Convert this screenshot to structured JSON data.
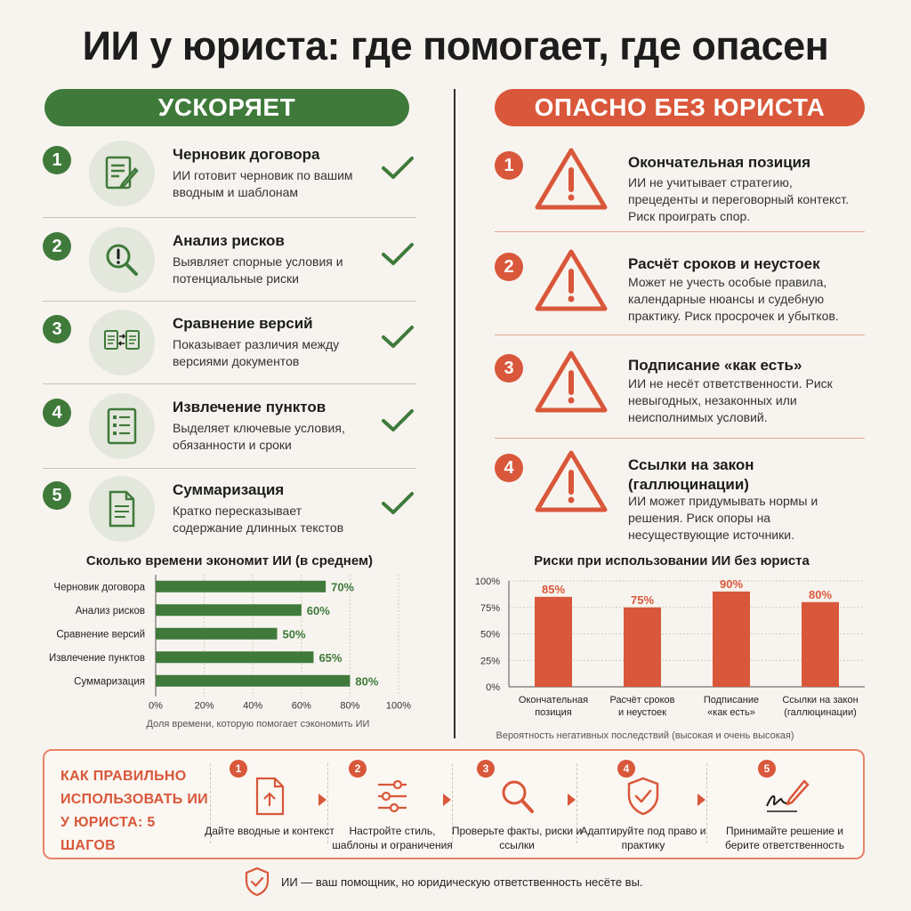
{
  "title": "ИИ у юриста: где помогает, где опасен",
  "left": {
    "header": "УСКОРЯЕТ",
    "items": [
      {
        "num": "1",
        "title": "Черновик договора",
        "desc": "ИИ готовит черновик по вашим вводным и шаблонам",
        "icon": "document-pen-icon"
      },
      {
        "num": "2",
        "title": "Анализ рисков",
        "desc": "Выявляет спорные условия и потенциальные риски",
        "icon": "magnifier-exclamation-icon"
      },
      {
        "num": "3",
        "title": "Сравнение версий",
        "desc": "Показывает различия между версиями документов",
        "icon": "compare-documents-icon"
      },
      {
        "num": "4",
        "title": "Извлечение пунктов",
        "desc": "Выделяет ключевые условия, обязанности и сроки",
        "icon": "checklist-icon"
      },
      {
        "num": "5",
        "title": "Суммаризация",
        "desc": "Кратко пересказывает содержание длинных текстов",
        "icon": "document-lines-icon"
      }
    ]
  },
  "right": {
    "header": "ОПАСНО БЕЗ ЮРИСТА",
    "items": [
      {
        "num": "1",
        "title": "Окончательная позиция",
        "desc": "ИИ не учитывает стратегию, прецеденты и переговорный контекст. Риск проиграть спор.",
        "icon": "warning-icon"
      },
      {
        "num": "2",
        "title": "Расчёт сроков и неустоек",
        "desc": "Может не учесть особые правила, календарные нюансы и судебную практику. Риск просрочек и убытков.",
        "icon": "warning-icon"
      },
      {
        "num": "3",
        "title": "Подписание «как есть»",
        "desc": "ИИ не несёт ответственности. Риск невыгодных, незаконных или неисполнимых условий.",
        "icon": "warning-icon"
      },
      {
        "num": "4",
        "title": "Ссылки на закон (галлюцинации)",
        "desc": "ИИ может придумывать нормы и решения. Риск опоры на несуществующие источники.",
        "icon": "warning-icon"
      }
    ]
  },
  "chart_data": [
    {
      "type": "bar",
      "orientation": "horizontal",
      "title": "Сколько времени экономит ИИ (в среднем)",
      "categories": [
        "Черновик договора",
        "Анализ рисков",
        "Сравнение версий",
        "Извлечение пунктов",
        "Суммаризация"
      ],
      "values": [
        70,
        60,
        50,
        65,
        80
      ],
      "value_labels": [
        "70%",
        "60%",
        "50%",
        "65%",
        "80%"
      ],
      "xlim": [
        0,
        100
      ],
      "x_ticks": [
        "0%",
        "20%",
        "40%",
        "60%",
        "80%",
        "100%"
      ],
      "xlabel": "Доля времени, которую помогает сэкономить ИИ",
      "grid": true,
      "color": "#3f7a3a"
    },
    {
      "type": "bar",
      "orientation": "vertical",
      "title": "Риски при использовании ИИ без юриста",
      "categories": [
        "Окончательная позиция",
        "Расчёт сроков и неустоек",
        "Подписание «как есть»",
        "Ссылки на закон (галлюцинации)"
      ],
      "category_lines": [
        [
          "Окончательная",
          "позиция"
        ],
        [
          "Расчёт сроков",
          "и неустоек"
        ],
        [
          "Подписание",
          "«как есть»"
        ],
        [
          "Ссылки на закон",
          "(галлюцинации)"
        ]
      ],
      "values": [
        85,
        75,
        90,
        80
      ],
      "value_labels": [
        "85%",
        "75%",
        "90%",
        "80%"
      ],
      "ylim": [
        0,
        100
      ],
      "y_ticks": [
        "0%",
        "25%",
        "50%",
        "75%",
        "100%"
      ],
      "xlabel": "Вероятность негативных последствий (высокая и очень высокая)",
      "grid": true,
      "color": "#d9573a"
    }
  ],
  "steps": {
    "title": "КАК ПРАВИЛЬНО ИСПОЛЬЗОВАТЬ ИИ У ЮРИСТА: 5 ШАГОВ",
    "items": [
      {
        "num": "1",
        "label": "Дайте вводные и контекст",
        "icon": "upload-document-icon"
      },
      {
        "num": "2",
        "label": "Настройте стиль, шаблоны и ограничения",
        "icon": "sliders-icon"
      },
      {
        "num": "3",
        "label": "Проверьте факты, риски и ссылки",
        "icon": "magnifier-icon"
      },
      {
        "num": "4",
        "label": "Адаптируйте под право и практику",
        "icon": "shield-check-icon"
      },
      {
        "num": "5",
        "label": "Принимайте решение и берите ответственность",
        "icon": "signature-pen-icon"
      }
    ]
  },
  "footer": {
    "text": "ИИ — ваш помощник, но юридическую ответственность несёте вы.",
    "icon": "shield-check-icon"
  },
  "colors": {
    "green": "#3f7a3a",
    "red": "#d9573a",
    "background": "#f7f4ef"
  }
}
